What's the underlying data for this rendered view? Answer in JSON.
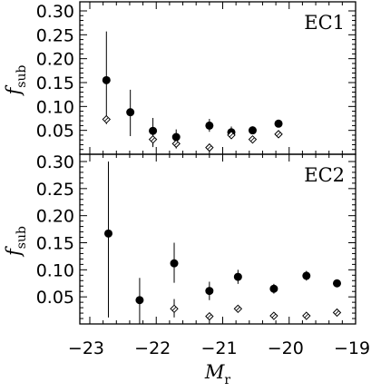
{
  "chart_data": [
    {
      "type": "scatter",
      "panel_label": "EC1",
      "ylabel": "f",
      "ylabel_sub": "sub",
      "xlabel": "M",
      "xlabel_sub": "r",
      "xlim": [
        -23.15,
        -19.0
      ],
      "ylim": [
        0.0,
        0.3
      ],
      "x_ticks": [
        "-23",
        "-22",
        "-21",
        "-20",
        "-19"
      ],
      "y_ticks": [
        "0.05",
        "0.10",
        "0.15",
        "0.20",
        "0.25",
        "0.30"
      ],
      "series": [
        {
          "marker": "filled-circle",
          "points": [
            {
              "x": -22.75,
              "y": 0.155,
              "lo": 0.063,
              "hi": 0.257
            },
            {
              "x": -22.39,
              "y": 0.088,
              "lo": 0.038,
              "hi": 0.135
            },
            {
              "x": -22.05,
              "y": 0.049,
              "lo": 0.018,
              "hi": 0.076
            },
            {
              "x": -21.7,
              "y": 0.036,
              "lo": 0.016,
              "hi": 0.052
            },
            {
              "x": -21.2,
              "y": 0.06,
              "lo": 0.047,
              "hi": 0.074
            },
            {
              "x": -20.87,
              "y": 0.046,
              "lo": 0.035,
              "hi": 0.058
            },
            {
              "x": -20.55,
              "y": 0.05,
              "lo": 0.042,
              "hi": 0.058
            },
            {
              "x": -20.16,
              "y": 0.064,
              "lo": 0.056,
              "hi": 0.072
            }
          ]
        },
        {
          "marker": "open-diamond",
          "points": [
            {
              "x": -22.75,
              "y": 0.073,
              "lo": null,
              "hi": null
            },
            {
              "x": -22.05,
              "y": 0.031,
              "lo": 0.015,
              "hi": 0.045
            },
            {
              "x": -21.7,
              "y": 0.022,
              "lo": 0.012,
              "hi": 0.032
            },
            {
              "x": -21.2,
              "y": 0.014,
              "lo": null,
              "hi": null
            },
            {
              "x": -20.87,
              "y": 0.04,
              "lo": 0.033,
              "hi": 0.048
            },
            {
              "x": -20.55,
              "y": 0.031,
              "lo": null,
              "hi": null
            },
            {
              "x": -20.16,
              "y": 0.042,
              "lo": null,
              "hi": null
            }
          ]
        }
      ]
    },
    {
      "type": "scatter",
      "panel_label": "EC2",
      "ylabel": "f",
      "ylabel_sub": "sub",
      "xlabel": "M",
      "xlabel_sub": "r",
      "xlim": [
        -23.15,
        -19.0
      ],
      "ylim": [
        0.0,
        0.3
      ],
      "x_ticks": [
        "-23",
        "-22",
        "-21",
        "-20",
        "-19"
      ],
      "y_ticks": [
        "0.05",
        "0.10",
        "0.15",
        "0.20",
        "0.25",
        "0.30"
      ],
      "series": [
        {
          "marker": "filled-circle",
          "points": [
            {
              "x": -22.72,
              "y": 0.167,
              "lo": 0.012,
              "hi": 0.3
            },
            {
              "x": -22.25,
              "y": 0.044,
              "lo": 0.0,
              "hi": 0.085
            },
            {
              "x": -21.73,
              "y": 0.112,
              "lo": 0.076,
              "hi": 0.15
            },
            {
              "x": -21.2,
              "y": 0.061,
              "lo": 0.044,
              "hi": 0.078
            },
            {
              "x": -20.77,
              "y": 0.087,
              "lo": 0.074,
              "hi": 0.1
            },
            {
              "x": -20.23,
              "y": 0.065,
              "lo": 0.056,
              "hi": 0.074
            },
            {
              "x": -19.74,
              "y": 0.089,
              "lo": 0.08,
              "hi": 0.098
            },
            {
              "x": -19.28,
              "y": 0.075,
              "lo": 0.068,
              "hi": 0.082
            }
          ]
        },
        {
          "marker": "open-diamond",
          "points": [
            {
              "x": -21.73,
              "y": 0.028,
              "lo": 0.012,
              "hi": 0.046
            },
            {
              "x": -21.2,
              "y": 0.014,
              "lo": null,
              "hi": null
            },
            {
              "x": -20.77,
              "y": 0.028,
              "lo": null,
              "hi": null
            },
            {
              "x": -20.23,
              "y": 0.015,
              "lo": null,
              "hi": null
            },
            {
              "x": -19.74,
              "y": 0.015,
              "lo": null,
              "hi": null
            },
            {
              "x": -19.28,
              "y": 0.021,
              "lo": null,
              "hi": null
            }
          ]
        }
      ]
    }
  ]
}
